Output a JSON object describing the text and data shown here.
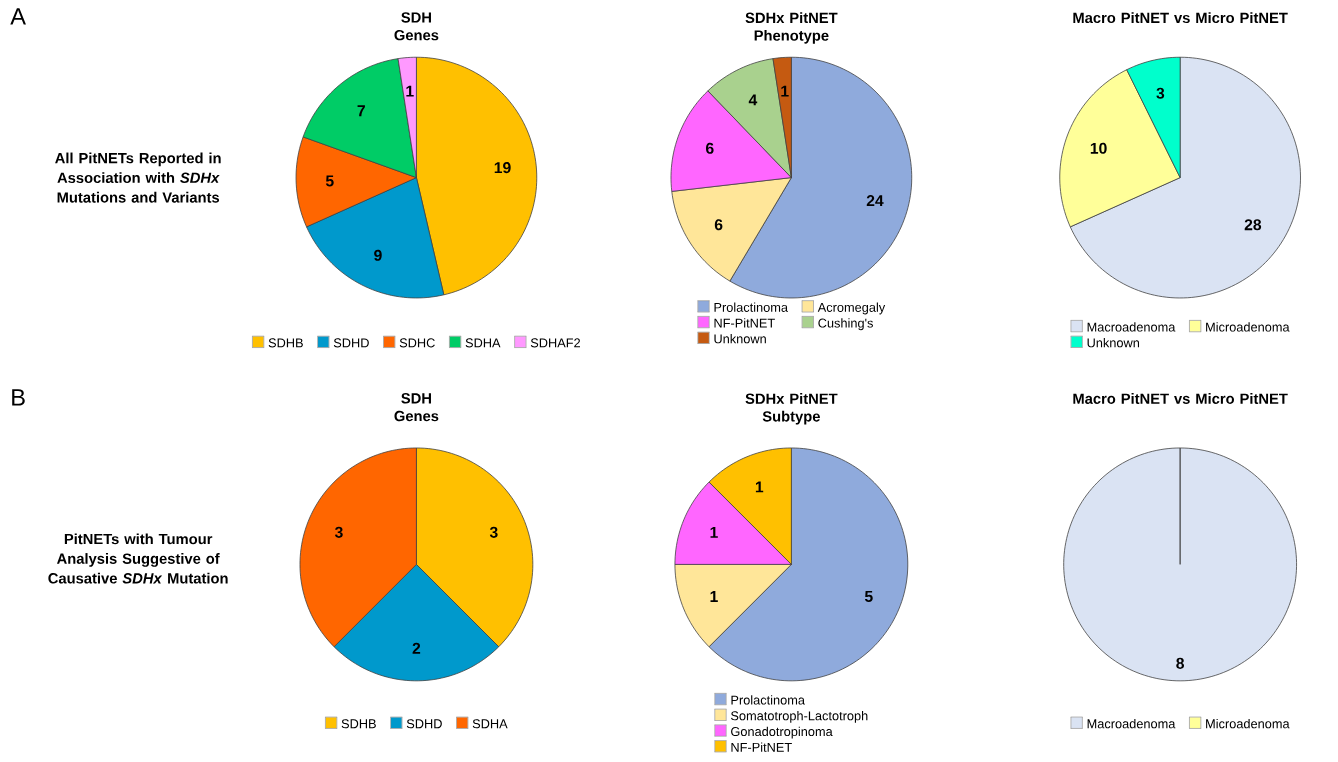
{
  "chart_data": [
    {
      "type": "pie",
      "title": "SDH Genes",
      "annotations": [
        "A",
        "All PitNETs Reported in Association with *SDHx* Mutations and Variants"
      ],
      "categories": [
        "SDHB",
        "SDHD",
        "SDHC",
        "SDHA",
        "SDHAF2"
      ],
      "values": [
        19,
        9,
        5,
        7,
        1
      ],
      "colors": [
        "#ffc000",
        "#0099cc",
        "#ff6600",
        "#00cc66",
        "#ff99ff"
      ],
      "data_labels": true,
      "legend": "bottom"
    },
    {
      "type": "pie",
      "title": "SDHx PitNET Phenotype",
      "categories": [
        "Prolactinoma",
        "Acromegaly",
        "NF-PitNET",
        "Cushing's",
        "Unknown"
      ],
      "values": [
        24,
        6,
        6,
        4,
        1
      ],
      "colors": [
        "#8faadc",
        "#ffe699",
        "#ff66ff",
        "#a9d18e",
        "#c55a11"
      ],
      "data_labels": true,
      "legend": "bottom"
    },
    {
      "type": "pie",
      "title": "Macro PitNET vs Micro PitNET",
      "categories": [
        "Macroadenoma",
        "Microadenoma",
        "Unknown"
      ],
      "values": [
        28,
        10,
        3
      ],
      "colors": [
        "#dae3f3",
        "#ffff99",
        "#00ffcc"
      ],
      "data_labels": true,
      "legend": "bottom"
    },
    {
      "type": "pie",
      "title": "SDH Genes",
      "annotations": [
        "B",
        "PitNETs with Tumour Analysis Suggestive of Causative *SDHx* Mutation"
      ],
      "categories": [
        "SDHB",
        "SDHD",
        "SDHA"
      ],
      "values": [
        3,
        2,
        3
      ],
      "colors": [
        "#ffc000",
        "#0099cc",
        "#ff6600"
      ],
      "data_labels": true,
      "legend": "bottom"
    },
    {
      "type": "pie",
      "title": "SDHx PitNET Subtype",
      "categories": [
        "Prolactinoma",
        "Somatotroph-Lactotroph",
        "Gonadotropinoma",
        "NF-PitNET"
      ],
      "values": [
        5,
        1,
        1,
        1
      ],
      "colors": [
        "#8faadc",
        "#ffe699",
        "#ff66ff",
        "#ffc000"
      ],
      "data_labels": true,
      "legend": "bottom"
    },
    {
      "type": "pie",
      "title": "Macro PitNET vs Micro PitNET",
      "categories": [
        "Macroadenoma",
        "Microadenoma"
      ],
      "values": [
        8,
        0
      ],
      "colors": [
        "#dae3f3",
        "#ffff99"
      ],
      "value_labels": [
        "8",
        null
      ],
      "legend": "bottom"
    }
  ]
}
